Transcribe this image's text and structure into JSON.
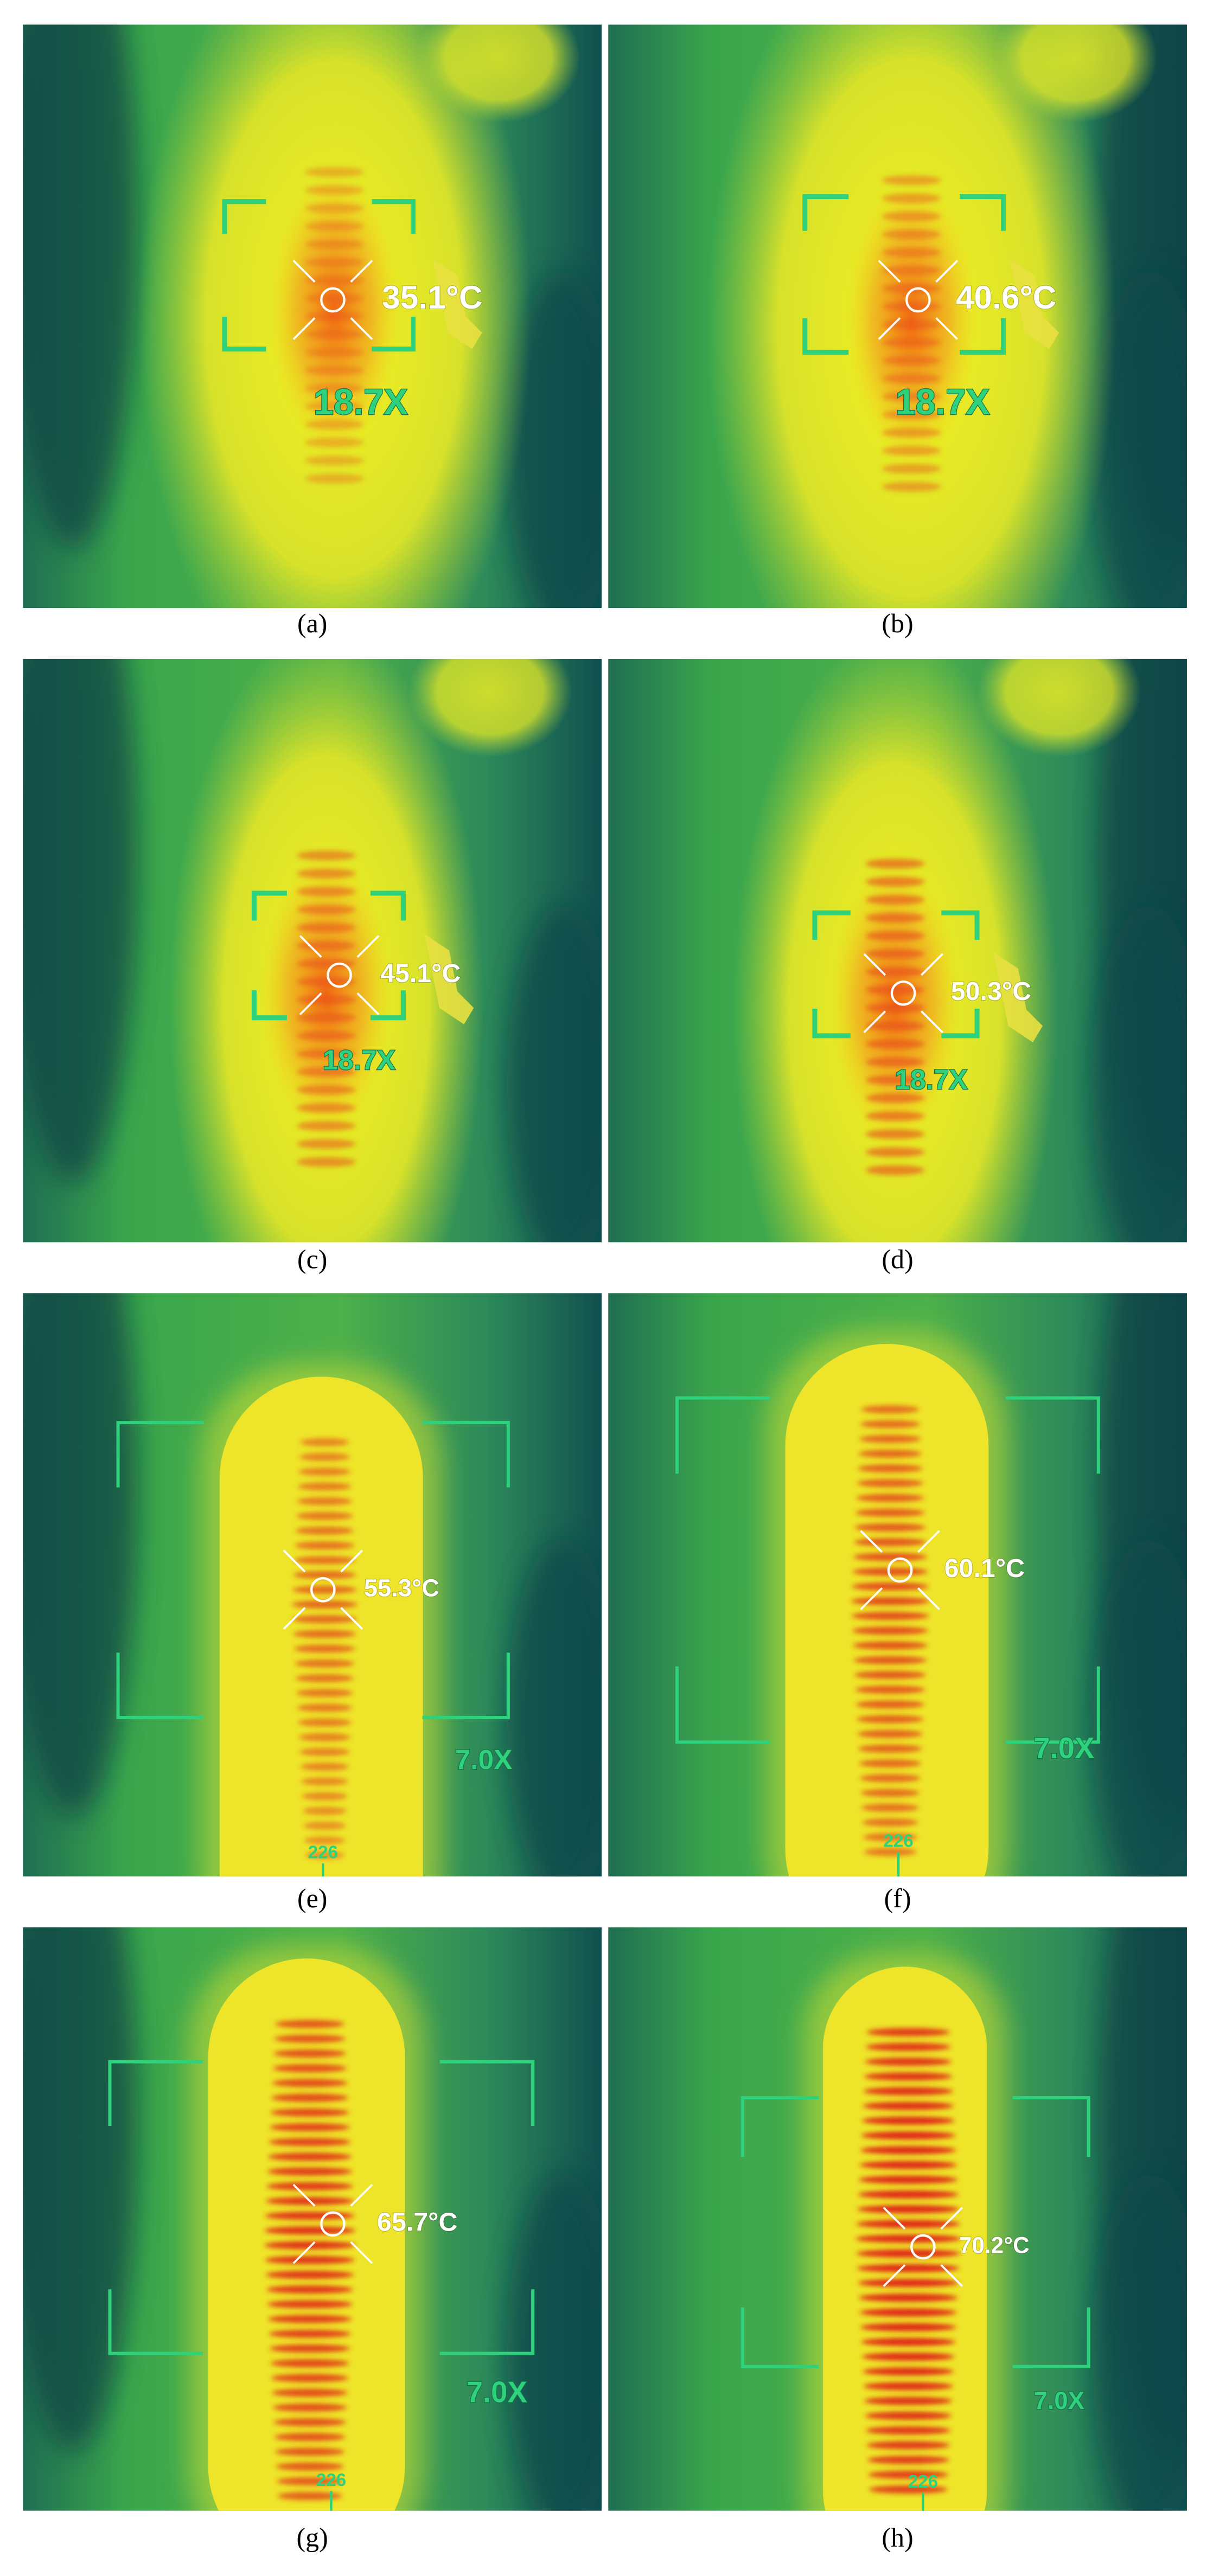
{
  "panels": [
    {
      "caption": "(a)",
      "temperature": "35.1°C",
      "zoom": "18.7X"
    },
    {
      "caption": "(b)",
      "temperature": "40.6°C",
      "zoom": "18.7X"
    },
    {
      "caption": "(c)",
      "temperature": "45.1°C",
      "zoom": "18.7X"
    },
    {
      "caption": "(d)",
      "temperature": "50.3°C",
      "zoom": "18.7X"
    },
    {
      "caption": "(e)",
      "temperature": "55.3°C",
      "zoom": "7.0X",
      "scale": "226"
    },
    {
      "caption": "(f)",
      "temperature": "60.1°C",
      "zoom": "7.0X",
      "scale": "226"
    },
    {
      "caption": "(g)",
      "temperature": "65.7°C",
      "zoom": "7.0X",
      "scale": "226"
    },
    {
      "caption": "(h)",
      "temperature": "70.2°C",
      "zoom": "7.0X",
      "scale": "226"
    }
  ]
}
